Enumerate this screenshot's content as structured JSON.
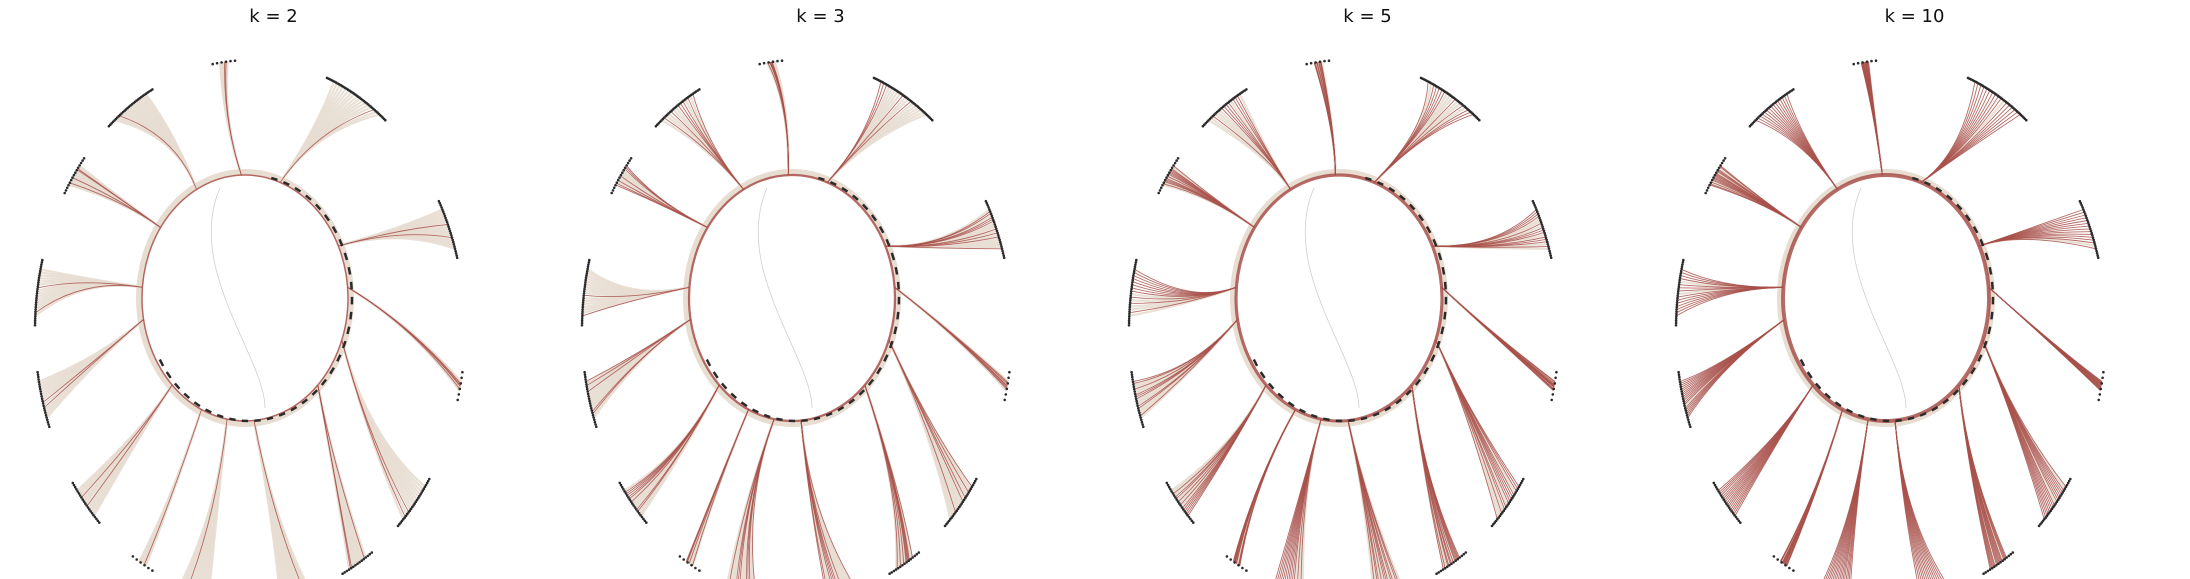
{
  "panels": [
    {
      "title": "k = 2",
      "highlight_share": 0.1
    },
    {
      "title": "k = 3",
      "highlight_share": 0.35
    },
    {
      "title": "k = 5",
      "highlight_share": 0.65
    },
    {
      "title": "k = 10",
      "highlight_share": 0.9
    }
  ],
  "colors": {
    "base_edge": "#e7ddd1",
    "highlight_edge": "#a8504a",
    "node": "#2b2b2b",
    "background": "#ffffff"
  }
}
